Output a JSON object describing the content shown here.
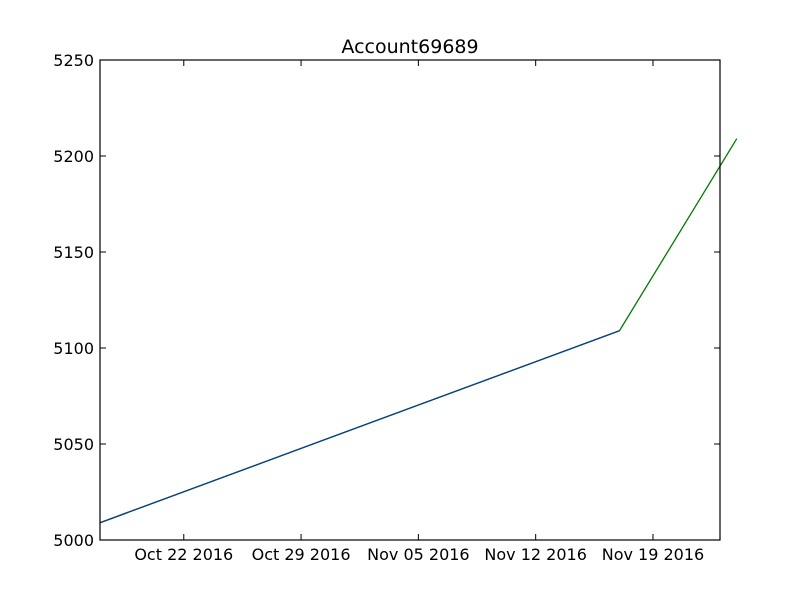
{
  "chart_data": {
    "type": "line",
    "title": "Account69689",
    "xlabel": "",
    "ylabel": "",
    "ylim": [
      5000,
      5250
    ],
    "xlim": [
      "2016-10-17",
      "2016-11-23"
    ],
    "x_ticks": [
      {
        "date": "2016-10-22",
        "label": "Oct 22 2016"
      },
      {
        "date": "2016-10-29",
        "label": "Oct 29 2016"
      },
      {
        "date": "2016-11-05",
        "label": "Nov 05 2016"
      },
      {
        "date": "2016-11-12",
        "label": "Nov 12 2016"
      },
      {
        "date": "2016-11-19",
        "label": "Nov 19 2016"
      }
    ],
    "y_ticks": [
      5000,
      5050,
      5100,
      5150,
      5200,
      5250
    ],
    "grid": false,
    "series": [
      {
        "color": "#007a00",
        "points": [
          {
            "x": "2016-10-17",
            "y": 5009
          },
          {
            "x": "2016-11-17",
            "y": 5109
          },
          {
            "x": "2016-11-24",
            "y": 5209
          }
        ]
      },
      {
        "color": "#0a3d8c",
        "points": [
          {
            "x": "2016-10-17",
            "y": 5009
          },
          {
            "x": "2016-11-17",
            "y": 5109
          }
        ]
      }
    ]
  }
}
